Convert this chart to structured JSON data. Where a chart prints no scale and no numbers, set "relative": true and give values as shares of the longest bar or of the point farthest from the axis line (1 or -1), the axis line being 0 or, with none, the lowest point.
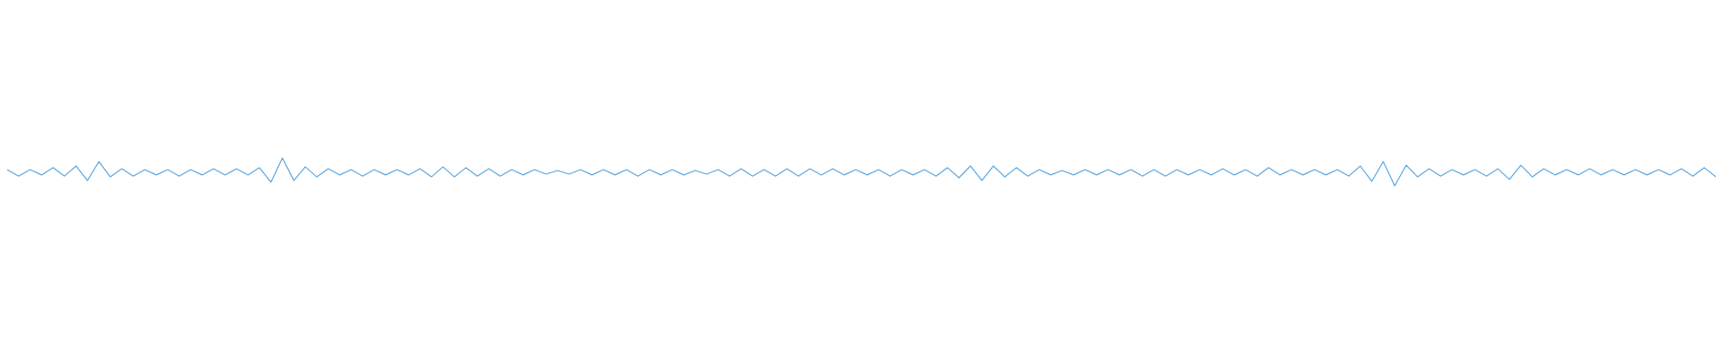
{
  "chart_data": {
    "type": "line",
    "relative": true,
    "categories": [
      null,
      null,
      null,
      null,
      null,
      null,
      null,
      null,
      null,
      null,
      null,
      null,
      null,
      null,
      null,
      null,
      null,
      null,
      null,
      null,
      null,
      null,
      null,
      null,
      null,
      null,
      null,
      null,
      null,
      null,
      null,
      null,
      null,
      null,
      null,
      null,
      null,
      null,
      null,
      null,
      null,
      null,
      null,
      null,
      null,
      null,
      null,
      null,
      null,
      null,
      null,
      null,
      null,
      null,
      null,
      null,
      null,
      null,
      null,
      null,
      null,
      null,
      null,
      null,
      null,
      null,
      null,
      null,
      null,
      null,
      null,
      null,
      null,
      null,
      null,
      null,
      null,
      null,
      null,
      null,
      null,
      null,
      null,
      null,
      null,
      null,
      null,
      null,
      null,
      null,
      null,
      null,
      null,
      null,
      null,
      null,
      null,
      null,
      null,
      null,
      null,
      null,
      null,
      null,
      null,
      null,
      null,
      null,
      null,
      null,
      null,
      null,
      null,
      null,
      null,
      null,
      null,
      null,
      null,
      null,
      null,
      null,
      null,
      null,
      null,
      null,
      null,
      null,
      null,
      null,
      null,
      null,
      null,
      null,
      null,
      null,
      null,
      null,
      null,
      null,
      null,
      null,
      null,
      null,
      null,
      null,
      null,
      null,
      null,
      null
    ],
    "series": [
      {
        "color": "#5ba7e0",
        "values": [
          0.58,
          0.35,
          0.58,
          0.39,
          0.65,
          0.35,
          0.71,
          0.19,
          0.87,
          0.32,
          0.61,
          0.35,
          0.58,
          0.39,
          0.58,
          0.35,
          0.58,
          0.39,
          0.61,
          0.39,
          0.61,
          0.39,
          0.65,
          0.13,
          1.0,
          0.19,
          0.68,
          0.32,
          0.61,
          0.39,
          0.58,
          0.35,
          0.58,
          0.39,
          0.58,
          0.39,
          0.61,
          0.32,
          0.68,
          0.32,
          0.65,
          0.35,
          0.61,
          0.35,
          0.58,
          0.39,
          0.58,
          0.42,
          0.55,
          0.42,
          0.58,
          0.39,
          0.58,
          0.39,
          0.58,
          0.35,
          0.58,
          0.39,
          0.58,
          0.39,
          0.55,
          0.42,
          0.58,
          0.35,
          0.61,
          0.35,
          0.58,
          0.35,
          0.61,
          0.35,
          0.61,
          0.39,
          0.61,
          0.39,
          0.58,
          0.39,
          0.58,
          0.35,
          0.58,
          0.39,
          0.58,
          0.35,
          0.65,
          0.29,
          0.71,
          0.19,
          0.71,
          0.32,
          0.65,
          0.35,
          0.58,
          0.39,
          0.55,
          0.39,
          0.58,
          0.39,
          0.58,
          0.39,
          0.58,
          0.35,
          0.58,
          0.35,
          0.58,
          0.39,
          0.58,
          0.39,
          0.61,
          0.39,
          0.58,
          0.35,
          0.65,
          0.39,
          0.58,
          0.39,
          0.58,
          0.39,
          0.58,
          0.35,
          0.71,
          0.16,
          0.87,
          0,
          0.74,
          0.32,
          0.61,
          0.35,
          0.58,
          0.39,
          0.58,
          0.35,
          0.61,
          0.23,
          0.74,
          0.32,
          0.61,
          0.39,
          0.58,
          0.39,
          0.61,
          0.39,
          0.58,
          0.39,
          0.58,
          0.39,
          0.58,
          0.39,
          0.61,
          0.35,
          0.65,
          0.32
        ]
      }
    ]
  }
}
